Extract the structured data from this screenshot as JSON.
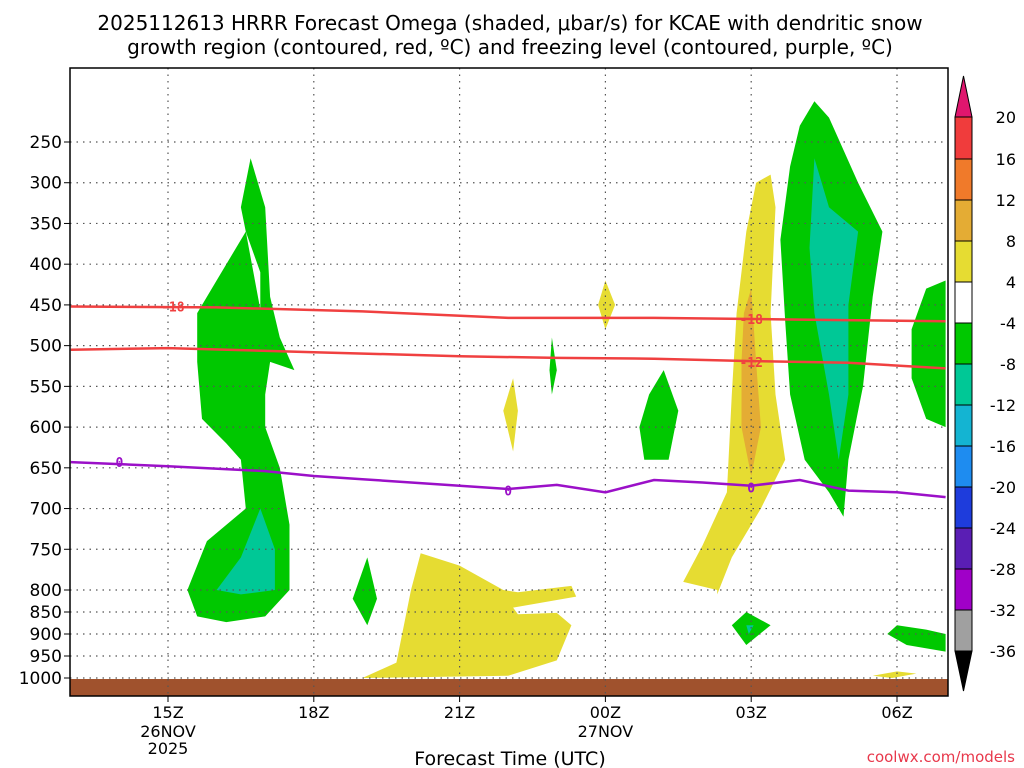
{
  "chart_data": {
    "type": "contour",
    "title_line1": "2025112613 HRRR Forecast Omega (shaded, μbar/s) for KCAE with dendritic snow",
    "title_line2": "growth region (contoured, red, ºC) and freezing level (contoured, purple, ºC)",
    "xlabel": "Forecast Time (UTC)",
    "credit": "coolwx.com/models",
    "y_ticks": [
      "250",
      "300",
      "350",
      "400",
      "450",
      "500",
      "550",
      "600",
      "650",
      "700",
      "750",
      "800",
      "850",
      "900",
      "950",
      "1000"
    ],
    "y_levels": [
      250,
      300,
      350,
      400,
      450,
      500,
      550,
      600,
      650,
      700,
      750,
      800,
      850,
      900,
      950,
      1000
    ],
    "y_units": "hPa",
    "x_ticks": [
      {
        "label": "15Z",
        "hour": 2,
        "date": "26NOV",
        "year": "2025"
      },
      {
        "label": "18Z",
        "hour": 5,
        "date": "",
        "year": ""
      },
      {
        "label": "21Z",
        "hour": 8,
        "date": "",
        "year": ""
      },
      {
        "label": "00Z",
        "hour": 11,
        "date": "27NOV",
        "year": ""
      },
      {
        "label": "03Z",
        "hour": 14,
        "date": "",
        "year": ""
      },
      {
        "label": "06Z",
        "hour": 17,
        "date": "",
        "year": ""
      }
    ],
    "x_range_hours": [
      0,
      18
    ],
    "colorbar": {
      "ticks": [
        "20",
        "16",
        "12",
        "8",
        "4",
        "-4",
        "-8",
        "-12",
        "-16",
        "-20",
        "-24",
        "-28",
        "-32",
        "-36"
      ],
      "colors": [
        "#e0166e",
        "#f03c3c",
        "#f07a2a",
        "#e4ac34",
        "#e6dc32",
        "#ffffff",
        "#00c800",
        "#00c896",
        "#14b4d2",
        "#1e8cf0",
        "#1e3cdc",
        "#5a1eb4",
        "#a000c8",
        "#a0a0a0",
        "#000000"
      ]
    },
    "contours": [
      {
        "name": "DGZ -18",
        "color": "#f04040",
        "value_label": "-18",
        "points": [
          [
            0,
            452
          ],
          [
            3,
            453
          ],
          [
            6,
            458
          ],
          [
            9,
            466
          ],
          [
            12,
            466
          ],
          [
            15,
            468
          ],
          [
            18,
            470
          ]
        ],
        "labels": [
          [
            2.1,
            452
          ],
          [
            14.0,
            467
          ]
        ]
      },
      {
        "name": "DGZ -12",
        "color": "#f04040",
        "value_label": "-12",
        "points": [
          [
            0,
            505
          ],
          [
            2,
            503
          ],
          [
            5,
            508
          ],
          [
            8,
            513
          ],
          [
            10,
            515
          ],
          [
            12,
            516
          ],
          [
            14,
            519
          ],
          [
            16,
            521
          ],
          [
            18,
            528
          ]
        ],
        "labels": [
          [
            14.0,
            520
          ]
        ]
      },
      {
        "name": "Freezing level 0",
        "color": "#9b10c8",
        "value_label": "0",
        "points": [
          [
            0,
            643
          ],
          [
            2,
            648
          ],
          [
            4,
            654
          ],
          [
            5,
            660
          ],
          [
            6,
            664
          ],
          [
            7,
            668
          ],
          [
            8,
            672
          ],
          [
            9,
            676
          ],
          [
            10,
            671
          ],
          [
            11,
            680
          ],
          [
            12,
            665
          ],
          [
            13,
            668
          ],
          [
            14,
            672
          ],
          [
            15,
            665
          ],
          [
            16,
            678
          ],
          [
            17,
            680
          ],
          [
            18,
            686
          ]
        ],
        "labels": [
          [
            1.0,
            643
          ],
          [
            9.0,
            678
          ],
          [
            14.0,
            674
          ]
        ]
      }
    ],
    "omega_regions": [
      {
        "name": "green upward blob 16Z",
        "value_class": "-8 to -4",
        "color": "#00c800",
        "points": [
          [
            3.6,
            360
          ],
          [
            3.9,
            410
          ],
          [
            3.9,
            470
          ],
          [
            4.1,
            520
          ],
          [
            4.6,
            530
          ],
          [
            4.3,
            490
          ],
          [
            4.1,
            440
          ],
          [
            4.0,
            330
          ],
          [
            3.7,
            270
          ],
          [
            3.5,
            330
          ],
          [
            3.6,
            360
          ],
          [
            3.0,
            420
          ],
          [
            2.6,
            460
          ],
          [
            2.6,
            520
          ],
          [
            2.7,
            590
          ],
          [
            3.2,
            620
          ],
          [
            3.5,
            640
          ],
          [
            3.6,
            700
          ],
          [
            2.8,
            740
          ],
          [
            2.4,
            800
          ],
          [
            2.6,
            860
          ],
          [
            3.2,
            873
          ],
          [
            4.0,
            860
          ],
          [
            4.5,
            800
          ],
          [
            4.5,
            720
          ],
          [
            4.3,
            650
          ],
          [
            4.0,
            600
          ],
          [
            4.0,
            560
          ],
          [
            4.1,
            520
          ]
        ]
      },
      {
        "name": "teal blob 16Z",
        "value_class": "-12 to -8",
        "color": "#00c896",
        "points": [
          [
            3.0,
            800
          ],
          [
            3.5,
            760
          ],
          [
            3.9,
            700
          ],
          [
            4.2,
            750
          ],
          [
            4.2,
            800
          ],
          [
            3.5,
            810
          ]
        ]
      },
      {
        "name": "yellow downward 21Z-23Z",
        "value_class": "4 to 8",
        "color": "#e6dc32",
        "points": [
          [
            6.0,
            1000
          ],
          [
            6.7,
            965
          ],
          [
            7.0,
            800
          ],
          [
            7.2,
            755
          ],
          [
            8.0,
            770
          ],
          [
            8.9,
            800
          ],
          [
            9.2,
            805
          ],
          [
            10.3,
            795
          ],
          [
            10.4,
            815
          ],
          [
            9.1,
            840
          ],
          [
            9.2,
            855
          ],
          [
            10.0,
            852
          ],
          [
            10.3,
            880
          ],
          [
            10.0,
            960
          ],
          [
            9.0,
            995
          ]
        ]
      },
      {
        "name": "yellow small 22Z",
        "value_class": "4 to 8",
        "color": "#e6dc32",
        "points": [
          [
            8.9,
            580
          ],
          [
            9.1,
            540
          ],
          [
            9.2,
            580
          ],
          [
            9.1,
            630
          ]
        ]
      },
      {
        "name": "yellow tiny 00Z",
        "value_class": "4 to 8",
        "color": "#e6dc32",
        "points": [
          [
            11.0,
            420
          ],
          [
            11.2,
            450
          ],
          [
            11.0,
            480
          ],
          [
            10.85,
            450
          ]
        ]
      },
      {
        "name": "green small 23Z",
        "value_class": "-8 to -4",
        "color": "#00c800",
        "points": [
          [
            9.9,
            490
          ],
          [
            10.0,
            530
          ],
          [
            9.9,
            560
          ],
          [
            9.85,
            530
          ]
        ]
      },
      {
        "name": "green small 19Z",
        "value_class": "-8 to -4",
        "color": "#00c800",
        "points": [
          [
            5.8,
            820
          ],
          [
            6.1,
            760
          ],
          [
            6.3,
            820
          ],
          [
            6.1,
            880
          ]
        ]
      },
      {
        "name": "green 01Z",
        "value_class": "-8 to -4",
        "color": "#00c800",
        "points": [
          [
            11.7,
            600
          ],
          [
            11.9,
            560
          ],
          [
            12.2,
            530
          ],
          [
            12.5,
            580
          ],
          [
            12.3,
            640
          ],
          [
            11.8,
            640
          ]
        ]
      },
      {
        "name": "yellow large 03Z",
        "value_class": "4 to 8",
        "color": "#e6dc32",
        "points": [
          [
            13.9,
            360
          ],
          [
            14.1,
            300
          ],
          [
            14.4,
            290
          ],
          [
            14.5,
            330
          ],
          [
            14.4,
            460
          ],
          [
            14.5,
            560
          ],
          [
            14.7,
            640
          ],
          [
            14.2,
            700
          ],
          [
            13.6,
            760
          ],
          [
            13.3,
            810
          ],
          [
            13.3,
            800
          ],
          [
            12.6,
            790
          ],
          [
            13.0,
            745
          ],
          [
            13.5,
            680
          ],
          [
            13.6,
            560
          ],
          [
            13.7,
            460
          ]
        ]
      },
      {
        "name": "orange core 03Z",
        "value_class": "8 to 12",
        "color": "#e4ac34",
        "points": [
          [
            13.85,
            460
          ],
          [
            14.0,
            430
          ],
          [
            14.1,
            520
          ],
          [
            14.2,
            600
          ],
          [
            14.0,
            660
          ],
          [
            13.8,
            600
          ],
          [
            13.8,
            520
          ]
        ]
      },
      {
        "name": "green large 04Z-05Z",
        "value_class": "-8 to -4",
        "color": "#00c800",
        "points": [
          [
            14.8,
            280
          ],
          [
            15.0,
            230
          ],
          [
            15.3,
            200
          ],
          [
            15.6,
            220
          ],
          [
            16.2,
            300
          ],
          [
            16.7,
            360
          ],
          [
            16.5,
            440
          ],
          [
            16.3,
            550
          ],
          [
            16.0,
            640
          ],
          [
            15.9,
            710
          ],
          [
            15.6,
            680
          ],
          [
            15.1,
            640
          ],
          [
            14.8,
            560
          ],
          [
            14.7,
            470
          ],
          [
            14.6,
            370
          ]
        ]
      },
      {
        "name": "teal inner 04Z-05Z",
        "value_class": "-12 to -8",
        "color": "#00c896",
        "points": [
          [
            15.3,
            270
          ],
          [
            15.6,
            330
          ],
          [
            16.2,
            360
          ],
          [
            16.0,
            450
          ],
          [
            16.0,
            560
          ],
          [
            15.8,
            640
          ],
          [
            15.6,
            560
          ],
          [
            15.3,
            460
          ],
          [
            15.2,
            380
          ]
        ]
      },
      {
        "name": "green 03Z low",
        "value_class": "-8 to -4",
        "color": "#00c800",
        "points": [
          [
            13.6,
            880
          ],
          [
            13.9,
            850
          ],
          [
            14.4,
            880
          ],
          [
            13.9,
            925
          ]
        ]
      },
      {
        "name": "teal dot 03Z",
        "value_class": "-12 to -8",
        "color": "#00c896",
        "points": [
          [
            13.9,
            880
          ],
          [
            14.05,
            880
          ],
          [
            13.95,
            900
          ]
        ]
      },
      {
        "name": "green right edge 07Z",
        "value_class": "-8 to -4",
        "color": "#00c800",
        "points": [
          [
            17.3,
            480
          ],
          [
            17.6,
            430
          ],
          [
            18.0,
            420
          ],
          [
            18.0,
            600
          ],
          [
            17.6,
            590
          ],
          [
            17.3,
            540
          ]
        ]
      },
      {
        "name": "green low right 06Z",
        "value_class": "-8 to -4",
        "color": "#00c800",
        "points": [
          [
            16.8,
            900
          ],
          [
            17.0,
            880
          ],
          [
            17.6,
            890
          ],
          [
            18.0,
            900
          ],
          [
            18.0,
            940
          ],
          [
            17.2,
            925
          ]
        ]
      },
      {
        "name": "yellow sliver 06Z",
        "value_class": "4 to 8",
        "color": "#e6dc32",
        "points": [
          [
            16.5,
            995
          ],
          [
            17.0,
            985
          ],
          [
            17.4,
            990
          ],
          [
            16.9,
            1000
          ]
        ]
      }
    ],
    "surface_fill_color": "#a0522d"
  }
}
